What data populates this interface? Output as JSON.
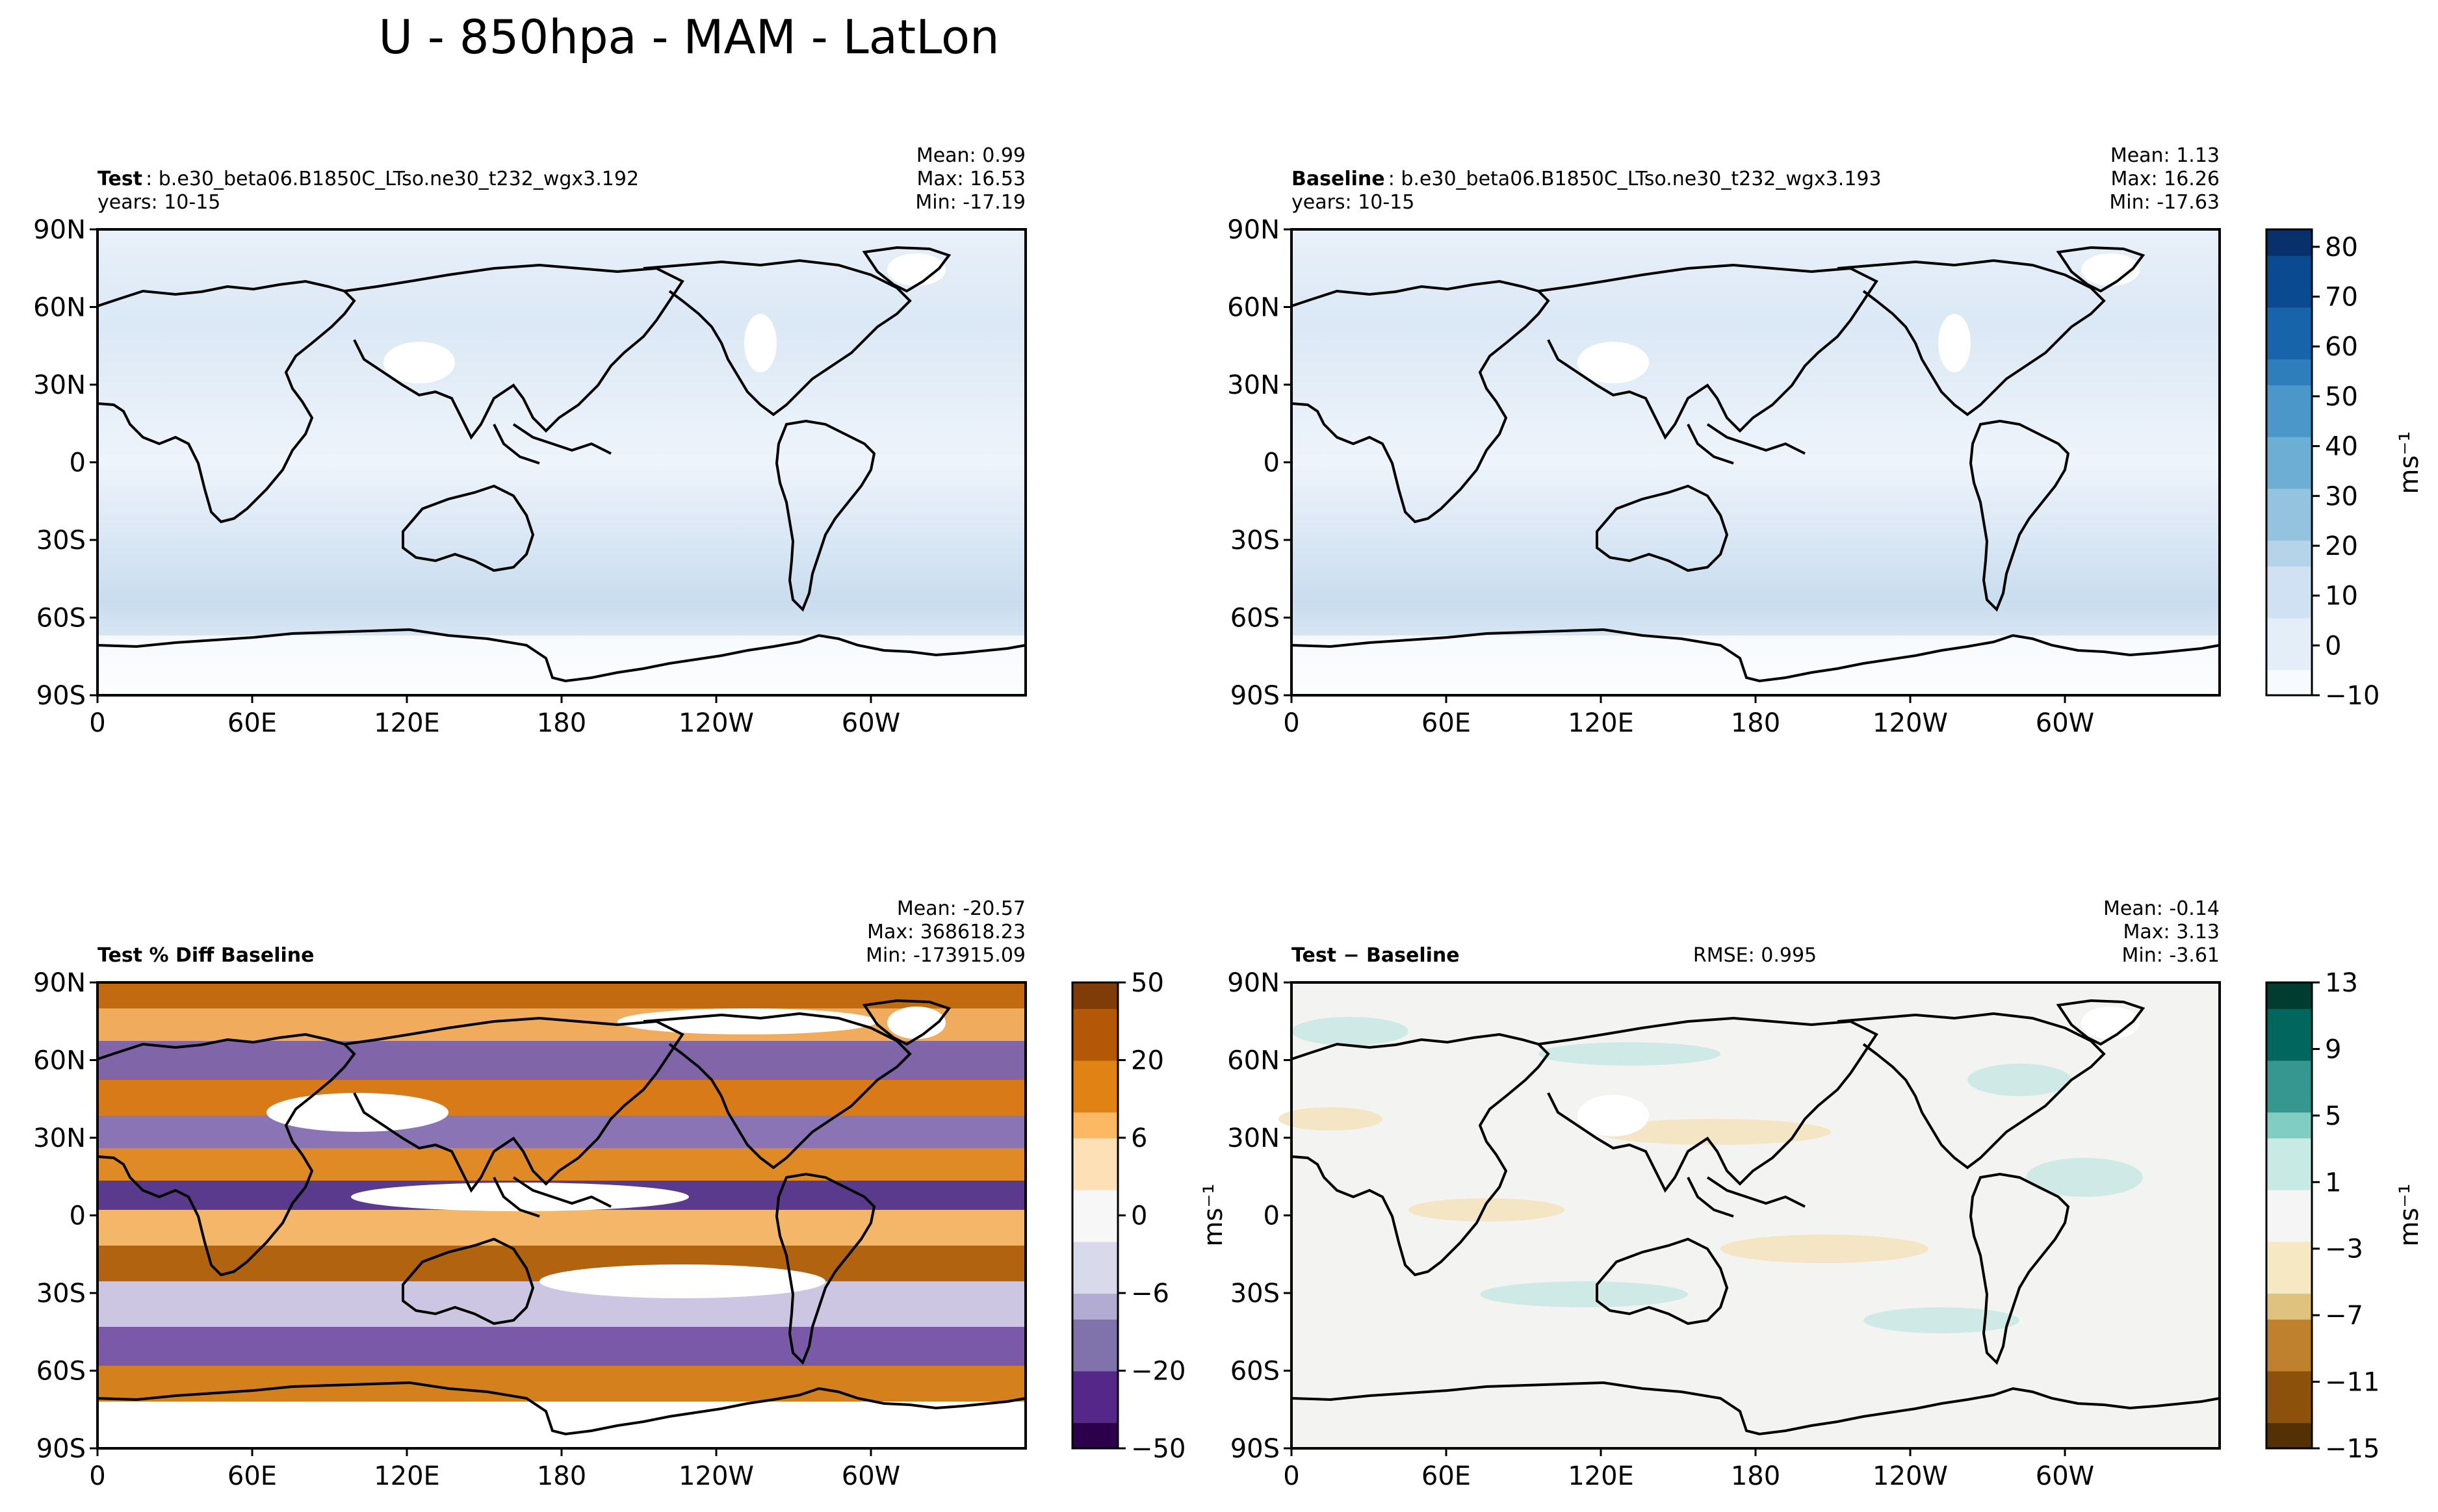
{
  "figure": {
    "title": "U - 850hpa - MAM - LatLon"
  },
  "axes": {
    "lat_ticks": [
      "90N",
      "60N",
      "30N",
      "0",
      "30S",
      "60S",
      "90S"
    ],
    "lon_ticks": [
      "0",
      "60E",
      "120E",
      "180",
      "120W",
      "60W"
    ]
  },
  "colors": {
    "blues": [
      "#f7fbff",
      "#e3eef9",
      "#cfe1f2",
      "#b5d4e9",
      "#93c3df",
      "#6daed5",
      "#4b97c9",
      "#2f7ebc",
      "#1864aa",
      "#0a4a90",
      "#08306b"
    ],
    "puor": [
      "#2d004b",
      "#542788",
      "#8073ac",
      "#b2abd2",
      "#d8daeb",
      "#f7f7f7",
      "#fee0b6",
      "#fdb863",
      "#e08214",
      "#b35806",
      "#7f3b08"
    ],
    "brbg": [
      "#543005",
      "#8c510a",
      "#bf812d",
      "#dfc27d",
      "#f6e8c3",
      "#f5f5f5",
      "#c7eae5",
      "#80cdc1",
      "#35978f",
      "#01665e",
      "#003c30"
    ]
  },
  "panels": [
    {
      "id": "test",
      "label": "Test",
      "case": ": b.e30_beta06.B1850C_LTso.ne30_t232_wgx3.192",
      "years": "years: 10-15",
      "mean": "Mean:  0.99",
      "max": "Max: 16.53",
      "min": "Min: -17.19"
    },
    {
      "id": "baseline",
      "label": "Baseline",
      "case": ": b.e30_beta06.B1850C_LTso.ne30_t232_wgx3.193",
      "years": "years: 10-15",
      "mean": "Mean:  1.13",
      "max": "Max: 16.26",
      "min": "Min: -17.63",
      "colorbar": {
        "ticks": [
          "80",
          "70",
          "60",
          "50",
          "40",
          "30",
          "20",
          "10",
          "0",
          "−10"
        ],
        "range": [
          -10,
          85
        ],
        "unit": "ms⁻¹"
      }
    },
    {
      "id": "pctdiff",
      "label": "Test % Diff Baseline",
      "mean": "Mean: -20.57",
      "max": "Max: 368618.23",
      "min": "Min: -173915.09",
      "colorbar": {
        "ticks": [
          "50",
          "20",
          "6",
          "0",
          "−6",
          "−20",
          "−50"
        ],
        "unit": "ms⁻¹"
      }
    },
    {
      "id": "diff",
      "label": "Test − Baseline",
      "rmse": "RMSE: 0.995",
      "mean": "Mean: -0.14",
      "max": "Max:  3.13",
      "min": "Min: -3.61",
      "colorbar": {
        "ticks": [
          "13",
          "9",
          "5",
          "1",
          "−3",
          "−7",
          "−11",
          "−15"
        ],
        "range": [
          -15,
          13
        ],
        "unit": "ms⁻¹"
      }
    }
  ],
  "chart_data": [
    {
      "type": "heatmap",
      "title": "Test",
      "variable": "U",
      "level": "850hpa",
      "season": "MAM",
      "stats": {
        "mean": 0.99,
        "max": 16.53,
        "min": -17.19
      },
      "xlabel": "",
      "ylabel": "",
      "x_ticks": [
        "0",
        "60E",
        "120E",
        "180",
        "120W",
        "60W"
      ],
      "y_ticks": [
        "90N",
        "60N",
        "30N",
        "0",
        "30S",
        "60S",
        "90S"
      ]
    },
    {
      "type": "heatmap",
      "title": "Baseline",
      "variable": "U",
      "level": "850hpa",
      "season": "MAM",
      "stats": {
        "mean": 1.13,
        "max": 16.26,
        "min": -17.63
      },
      "colorbar_ticks": [
        -10,
        0,
        10,
        20,
        30,
        40,
        50,
        60,
        70,
        80
      ],
      "colorbar_unit": "ms-1"
    },
    {
      "type": "heatmap",
      "title": "Test % Diff Baseline",
      "stats": {
        "mean": -20.57,
        "max": 368618.23,
        "min": -173915.09
      },
      "colorbar_ticks": [
        -50,
        -20,
        -6,
        0,
        6,
        20,
        50
      ],
      "colorbar_unit": "ms-1"
    },
    {
      "type": "heatmap",
      "title": "Test - Baseline",
      "rmse": 0.995,
      "stats": {
        "mean": -0.14,
        "max": 3.13,
        "min": -3.61
      },
      "colorbar_ticks": [
        -15,
        -11,
        -7,
        -3,
        1,
        5,
        9,
        13
      ],
      "colorbar_unit": "ms-1"
    }
  ]
}
